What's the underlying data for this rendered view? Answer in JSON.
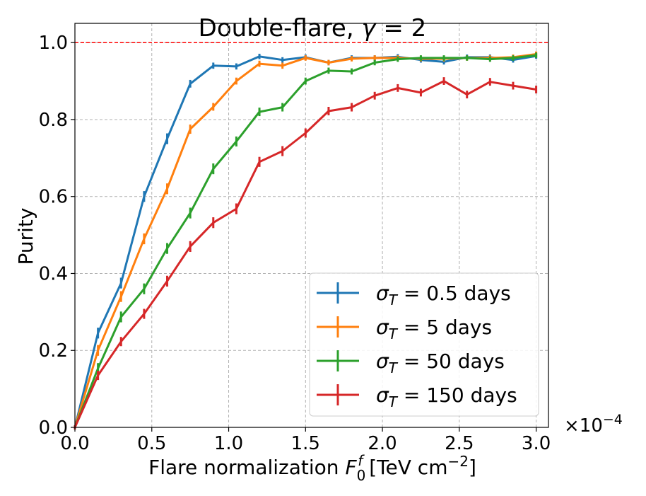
{
  "chart_data": {
    "type": "line",
    "title": "Double-flare, γ = 2",
    "title_parts": [
      "Double-flare, ",
      "γ",
      " = 2"
    ],
    "xlabel": "Flare normalization F",
    "xlabel_parts": [
      "Flare normalization ",
      "F",
      "0",
      "f",
      " [TeV cm",
      "−2",
      "]"
    ],
    "ylabel": "Purity",
    "x_multiplier": "×10",
    "x_multiplier_exp": "−4",
    "xlim": [
      0.0,
      3.08
    ],
    "ylim": [
      0.0,
      1.05
    ],
    "xticks": [
      0.0,
      0.5,
      1.0,
      1.5,
      2.0,
      2.5,
      3.0
    ],
    "xtick_labels": [
      "0.0",
      "0.5",
      "1.0",
      "1.5",
      "2.0",
      "2.5",
      "3.0"
    ],
    "yticks": [
      0.0,
      0.2,
      0.4,
      0.6,
      0.8,
      1.0
    ],
    "ytick_labels": [
      "0.0",
      "0.2",
      "0.4",
      "0.6",
      "0.8",
      "1.0"
    ],
    "grid": true,
    "reference_line": {
      "y": 1.0,
      "color": "#ff0000",
      "style": "dashed"
    },
    "legend_position": "lower-right",
    "x": [
      0.0,
      0.15,
      0.3,
      0.45,
      0.6,
      0.75,
      0.9,
      1.05,
      1.2,
      1.35,
      1.5,
      1.65,
      1.8,
      1.95,
      2.1,
      2.25,
      2.4,
      2.55,
      2.7,
      2.85,
      3.0
    ],
    "series": [
      {
        "name": "σT = 0.5 days",
        "label_sym": "σ",
        "label_sub": "T",
        "label_rest": " = 0.5 days",
        "color": "#1f77b4",
        "values": [
          0.0,
          0.245,
          0.375,
          0.6,
          0.75,
          0.893,
          0.94,
          0.938,
          0.964,
          0.955,
          0.962,
          0.948,
          0.96,
          0.96,
          0.963,
          0.955,
          0.95,
          0.962,
          0.962,
          0.955,
          0.965
        ],
        "errors": [
          0.005,
          0.014,
          0.014,
          0.014,
          0.014,
          0.01,
          0.008,
          0.008,
          0.007,
          0.007,
          0.007,
          0.007,
          0.007,
          0.007,
          0.007,
          0.007,
          0.007,
          0.007,
          0.007,
          0.007,
          0.007
        ]
      },
      {
        "name": "σT = 5 days",
        "label_sym": "σ",
        "label_sub": "T",
        "label_rest": " = 5 days",
        "color": "#ff7f0e",
        "values": [
          0.0,
          0.2,
          0.34,
          0.49,
          0.62,
          0.775,
          0.833,
          0.9,
          0.945,
          0.94,
          0.96,
          0.948,
          0.958,
          0.96,
          0.96,
          0.958,
          0.958,
          0.96,
          0.96,
          0.962,
          0.97
        ],
        "errors": [
          0.005,
          0.014,
          0.014,
          0.014,
          0.014,
          0.012,
          0.01,
          0.009,
          0.008,
          0.008,
          0.007,
          0.007,
          0.007,
          0.007,
          0.007,
          0.007,
          0.007,
          0.007,
          0.007,
          0.007,
          0.007
        ]
      },
      {
        "name": "σT = 50 days",
        "label_sym": "σ",
        "label_sub": "T",
        "label_rest": " = 50 days",
        "color": "#2ca02c",
        "values": [
          0.0,
          0.153,
          0.287,
          0.36,
          0.465,
          0.557,
          0.672,
          0.743,
          0.82,
          0.832,
          0.9,
          0.927,
          0.925,
          0.948,
          0.957,
          0.96,
          0.96,
          0.96,
          0.957,
          0.96,
          0.967
        ],
        "errors": [
          0.005,
          0.014,
          0.014,
          0.014,
          0.014,
          0.014,
          0.014,
          0.013,
          0.011,
          0.011,
          0.009,
          0.008,
          0.008,
          0.007,
          0.007,
          0.007,
          0.007,
          0.007,
          0.007,
          0.007,
          0.007
        ]
      },
      {
        "name": "σT = 150 days",
        "label_sym": "σ",
        "label_sub": "T",
        "label_rest": " = 150 days",
        "color": "#d62728",
        "values": [
          0.0,
          0.135,
          0.223,
          0.295,
          0.38,
          0.47,
          0.532,
          0.568,
          0.69,
          0.718,
          0.765,
          0.822,
          0.832,
          0.862,
          0.882,
          0.87,
          0.9,
          0.865,
          0.898,
          0.888,
          0.878
        ],
        "errors": [
          0.005,
          0.012,
          0.012,
          0.013,
          0.014,
          0.014,
          0.014,
          0.014,
          0.013,
          0.013,
          0.012,
          0.011,
          0.011,
          0.01,
          0.01,
          0.01,
          0.01,
          0.01,
          0.01,
          0.01,
          0.01
        ]
      }
    ]
  }
}
